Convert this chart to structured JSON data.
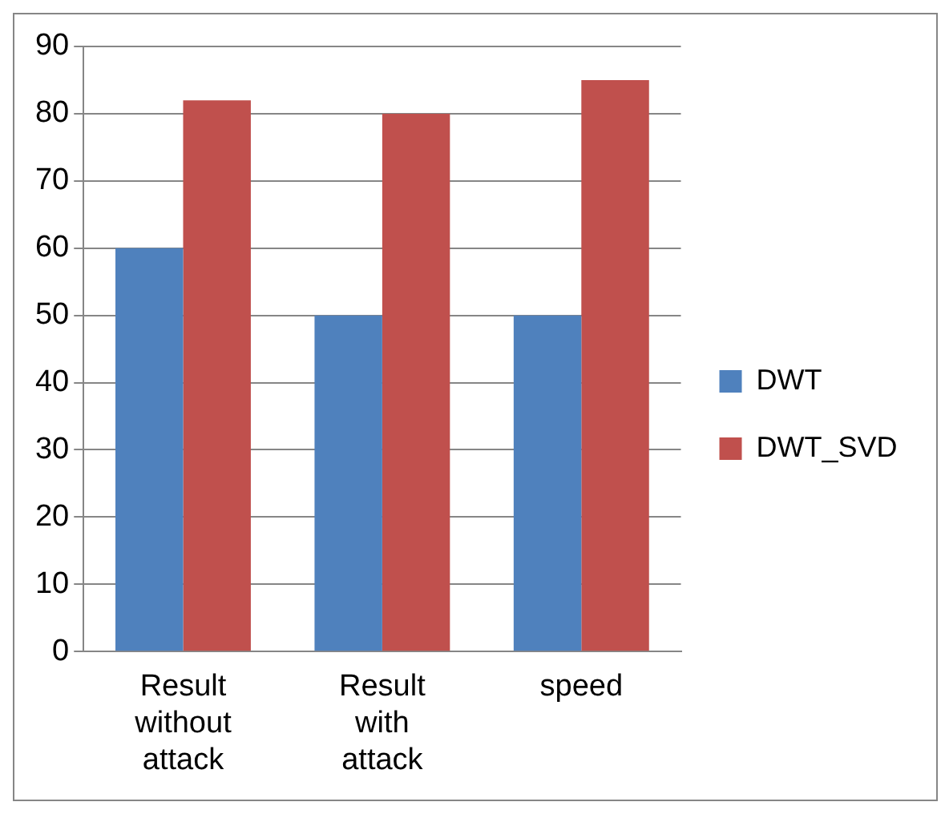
{
  "chart_data": {
    "type": "bar",
    "categories": [
      "Result without attack",
      "Result with attack",
      "speed"
    ],
    "series": [
      {
        "name": "DWT",
        "color": "#4f81bd",
        "values": [
          60,
          50,
          50
        ]
      },
      {
        "name": "DWT_SVD",
        "color": "#c0504d",
        "values": [
          82,
          80,
          85
        ]
      }
    ],
    "ylim": [
      0,
      90
    ],
    "yticks": [
      0,
      10,
      20,
      30,
      40,
      50,
      60,
      70,
      80,
      90
    ],
    "grid": "y",
    "legend": "right"
  }
}
